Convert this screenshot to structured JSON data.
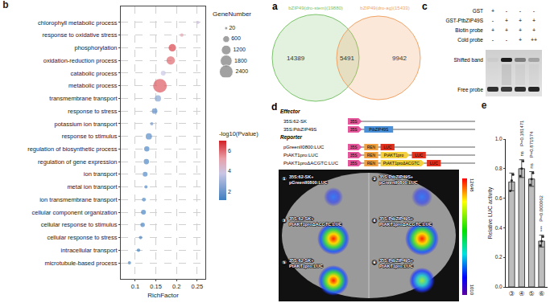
{
  "chart_data": [
    {
      "type": "scatter",
      "title": "b",
      "categories": [
        "chlorophyll metabolic process",
        "response to oxidative stress",
        "phosphorylation",
        "oxidation-reduction process",
        "catabolic process",
        "metabolic process",
        "transmembrane transport",
        "response to stress",
        "potassium ion transport",
        "response to stimulus",
        "regulation of biosynthetic process",
        "regulation of gene expression",
        "ion transport",
        "metal ion transport",
        "ion transmembrane transport",
        "cellular component organization",
        "cellular response to stimulus",
        "cellular response to stress",
        "intracellular transport",
        "microtubule-based process"
      ],
      "x": [
        0.252,
        0.213,
        0.19,
        0.186,
        0.168,
        0.16,
        0.155,
        0.147,
        0.14,
        0.133,
        0.128,
        0.127,
        0.124,
        0.126,
        0.121,
        0.12,
        0.118,
        0.113,
        0.108,
        0.086
      ],
      "size": [
        60,
        150,
        700,
        900,
        300,
        2400,
        500,
        400,
        40,
        500,
        350,
        370,
        300,
        70,
        200,
        300,
        250,
        150,
        150,
        100
      ],
      "color_values": [
        4.0,
        5.0,
        6.5,
        6.0,
        3.8,
        6.2,
        2.6,
        1.8,
        2.2,
        1.7,
        1.5,
        1.5,
        1.6,
        1.6,
        1.5,
        1.4,
        1.4,
        1.4,
        1.3,
        1.3
      ],
      "size_legend": {
        "title": "GeneNumber",
        "values": [
          20,
          600,
          1200,
          1800,
          2400
        ]
      },
      "colorbar": {
        "title": "-log10(Pvalue)",
        "range": [
          1.2,
          7
        ],
        "ticks": [
          2,
          4,
          6
        ]
      },
      "x_label": "RichFactor",
      "xlim": [
        0.065,
        0.27
      ],
      "xticks": [
        0.1,
        0.15,
        0.2,
        0.25
      ],
      "grid": true
    },
    {
      "type": "bar",
      "title": "e",
      "categories": [
        "③",
        "④",
        "⑤",
        "⑥"
      ],
      "values": [
        0.71,
        0.8,
        0.73,
        0.31
      ],
      "error": [
        0.06,
        0.06,
        0.05,
        0.04
      ],
      "points": [
        [
          0.65,
          0.72,
          0.76
        ],
        [
          0.75,
          0.8,
          0.85
        ],
        [
          0.69,
          0.73,
          0.77
        ],
        [
          0.28,
          0.31,
          0.34
        ]
      ],
      "color": "#bdbdbd",
      "y_label": "Relative LUC activity",
      "ylim": [
        0,
        1
      ],
      "yticks": [
        {
          "value": 0,
          "label": "0.0"
        },
        0.2,
        0.4,
        0.6,
        0.8,
        {
          "value": 1,
          "label": "1.0"
        }
      ],
      "annotations": {
        "p_labels": [
          null,
          "P=0.181471",
          "P=0.871574",
          "P=0.000062"
        ],
        "significance": [
          null,
          "ns",
          "ns",
          "***"
        ]
      }
    }
  ],
  "venn": {
    "title": "a",
    "sets": [
      {
        "name": "bZIP49(dro-stem)(19880)",
        "color": "#7cc46a"
      },
      {
        "name": "bZIP49(dro-ag)(15433)",
        "color": "#f0a468"
      }
    ],
    "only_first": 14389,
    "both": 5491,
    "only_second": 9942
  },
  "emsa": {
    "title": "c",
    "rows": [
      {
        "name": "GST",
        "lanes": [
          "+",
          "-",
          "-",
          "-"
        ]
      },
      {
        "name": "GST-PtbZIP49S",
        "lanes": [
          "-",
          "+",
          "+",
          "+"
        ]
      },
      {
        "name": "Biotin probe",
        "lanes": [
          "+",
          "+",
          "+",
          "+"
        ]
      },
      {
        "name": "Cold probe",
        "lanes": [
          "-",
          "-",
          "+",
          "++"
        ]
      }
    ],
    "bands": [
      "Shifted band",
      "Free probe"
    ]
  },
  "constructs": {
    "title": "d",
    "groups": [
      {
        "name": "Effector",
        "rows": [
          {
            "name": "35S:62-SK",
            "parts": [
              {
                "text": "35S",
                "shape": "promoter",
                "color": "#e4579c"
              }
            ]
          },
          {
            "name": "35S:PtbZIP49S",
            "parts": [
              {
                "text": "35S",
                "shape": "promoter",
                "color": "#e4579c"
              },
              {
                "text": "PtbZIP49S",
                "shape": "gene",
                "color": "#4a90d9"
              }
            ]
          }
        ]
      },
      {
        "name": "Reporter",
        "rows": [
          {
            "name": "pGreenII0800:LUC",
            "parts": [
              {
                "text": "35S",
                "shape": "promoter",
                "color": "#e4579c"
              },
              {
                "text": "REN",
                "shape": "gene",
                "color": "#f0a040"
              },
              {
                "text": "LUC",
                "shape": "gene",
                "color": "#e0301e"
              }
            ]
          },
          {
            "name": "PtAKT1pro:LUC",
            "parts": [
              {
                "text": "35S",
                "shape": "promoter",
                "color": "#e4579c"
              },
              {
                "text": "REN",
                "shape": "gene",
                "color": "#f0a040"
              },
              {
                "text": "PtAKT1pro",
                "shape": "promoter",
                "color": "#f4d03f"
              },
              {
                "text": "LUC",
                "shape": "gene",
                "color": "#e0301e"
              }
            ]
          },
          {
            "name": "PtAKT1proΔACGTC:LUC",
            "parts": [
              {
                "text": "35S",
                "shape": "promoter",
                "color": "#e4579c"
              },
              {
                "text": "REN",
                "shape": "gene",
                "color": "#f0a040"
              },
              {
                "text": "PtAKT1proΔACGTC",
                "shape": "promoter",
                "color": "#f4d03f"
              },
              {
                "text": "LUC",
                "shape": "gene",
                "color": "#e0301e"
              }
            ]
          }
        ]
      }
    ]
  },
  "leaf": {
    "spots": [
      {
        "number": "①",
        "lines": [
          "35S:62-SK+",
          "pGreenII0800:LUC"
        ]
      },
      {
        "number": "②",
        "lines": [
          "35S:PtbZIP49S+",
          "pGreenII0800:LUC"
        ]
      },
      {
        "number": "③",
        "lines": [
          "35S:62-SK+",
          "PtAKT1proΔACGTC:LUC"
        ]
      },
      {
        "number": "④",
        "lines": [
          "35S:PtbZIP49S+",
          "PtAKT1proΔACGTC:LUC"
        ]
      },
      {
        "number": "⑤",
        "lines": [
          "35S:62-SK+",
          "PtAKT1pro:LUC"
        ]
      },
      {
        "number": "⑥",
        "lines": [
          "35S:PtbZIP49S+",
          "PtAKT1pro:LUC"
        ]
      }
    ],
    "scale": {
      "max": 12648,
      "min": 1010
    }
  }
}
